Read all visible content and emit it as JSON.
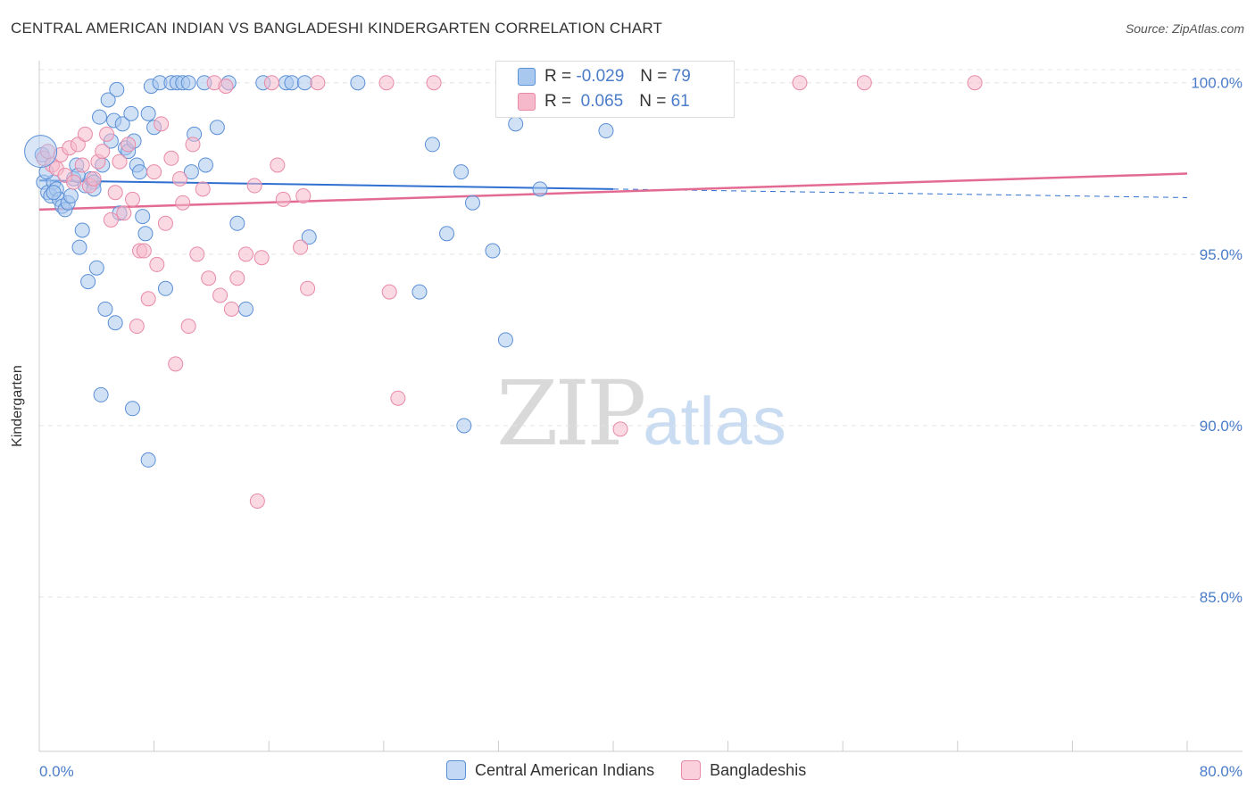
{
  "title": "CENTRAL AMERICAN INDIAN VS BANGLADESHI KINDERGARTEN CORRELATION CHART",
  "source": "Source: ZipAtlas.com",
  "watermark": {
    "zip": "ZIP",
    "atlas": "atlas"
  },
  "colors": {
    "blue_fill": "#a9c8ef",
    "blue_stroke": "#5b8fd6",
    "blue_line": "#2f6fd0",
    "pink_fill": "#f6b9cc",
    "pink_stroke": "#e88aa8",
    "pink_line": "#e36b93",
    "tick_text": "#4a7cc9",
    "grid": "#e4e4e4"
  },
  "legend": {
    "rows": [
      {
        "r_label": "R =",
        "r_value": "-0.029",
        "n_label": "N =",
        "n_value": "79",
        "series": "blue"
      },
      {
        "r_label": "R =",
        "r_value": " 0.065",
        "n_label": "N =",
        "n_value": "61",
        "series": "pink"
      }
    ]
  },
  "bottom_legend": [
    {
      "label": "Central American Indians",
      "series": "blue"
    },
    {
      "label": "Bangladeshis",
      "series": "pink"
    }
  ],
  "chart_data": {
    "type": "scatter",
    "title": "CENTRAL AMERICAN INDIAN VS BANGLADESHI KINDERGARTEN CORRELATION CHART",
    "xlabel": "",
    "ylabel": "Kindergarten",
    "xlim": [
      0,
      80
    ],
    "ylim": [
      80.5,
      100.8
    ],
    "x_tick_labels": [
      {
        "value": 0,
        "label": "0.0%"
      },
      {
        "value": 80,
        "label": "80.0%"
      }
    ],
    "y_tick_labels": [
      {
        "value": 100,
        "label": "100.0%"
      },
      {
        "value": 95,
        "label": "95.0%"
      },
      {
        "value": 90,
        "label": "90.0%"
      },
      {
        "value": 85,
        "label": "85.0%"
      }
    ],
    "y_gridlines": [
      100,
      95,
      90,
      85
    ],
    "x_minor_ticks": [
      0,
      8,
      16,
      24,
      32,
      40,
      48,
      56,
      64,
      72,
      80
    ],
    "series": [
      {
        "name": "Central American Indians",
        "color": "blue",
        "R": -0.029,
        "N": 79,
        "trend": {
          "x0": 0,
          "y0": 97.15,
          "x1": 40,
          "y1": 96.9,
          "dash_x1": 80,
          "dash_y1": 96.65
        },
        "points": [
          [
            0.2,
            97.9
          ],
          [
            0.3,
            97.1
          ],
          [
            0.6,
            96.8
          ],
          [
            0.8,
            96.7
          ],
          [
            1.0,
            97.1
          ],
          [
            1.2,
            96.9
          ],
          [
            1.4,
            96.6
          ],
          [
            1.6,
            96.4
          ],
          [
            1.8,
            96.3
          ],
          [
            2.0,
            96.5
          ],
          [
            2.2,
            96.7
          ],
          [
            2.4,
            97.2
          ],
          [
            2.6,
            97.6
          ],
          [
            2.8,
            95.2
          ],
          [
            3.0,
            95.7
          ],
          [
            3.2,
            97.0
          ],
          [
            3.4,
            94.2
          ],
          [
            3.6,
            97.2
          ],
          [
            3.8,
            97.1
          ],
          [
            4.0,
            94.6
          ],
          [
            4.2,
            99.0
          ],
          [
            4.4,
            97.6
          ],
          [
            4.6,
            93.4
          ],
          [
            4.8,
            99.5
          ],
          [
            5.0,
            98.3
          ],
          [
            5.2,
            98.9
          ],
          [
            5.4,
            99.8
          ],
          [
            5.6,
            96.2
          ],
          [
            5.8,
            98.8
          ],
          [
            6.0,
            98.1
          ],
          [
            6.2,
            98.0
          ],
          [
            6.4,
            99.1
          ],
          [
            6.6,
            98.3
          ],
          [
            6.8,
            97.6
          ],
          [
            7.0,
            97.4
          ],
          [
            7.2,
            96.1
          ],
          [
            7.4,
            95.6
          ],
          [
            7.6,
            99.1
          ],
          [
            7.8,
            99.9
          ],
          [
            8.0,
            98.7
          ],
          [
            8.4,
            100.0
          ],
          [
            8.8,
            94.0
          ],
          [
            9.2,
            100.0
          ],
          [
            9.6,
            100.0
          ],
          [
            10.0,
            100.0
          ],
          [
            10.4,
            100.0
          ],
          [
            10.6,
            97.4
          ],
          [
            10.8,
            98.5
          ],
          [
            11.5,
            100.0
          ],
          [
            11.6,
            97.6
          ],
          [
            12.4,
            98.7
          ],
          [
            13.2,
            100.0
          ],
          [
            13.8,
            95.9
          ],
          [
            14.4,
            93.4
          ],
          [
            15.6,
            100.0
          ],
          [
            17.2,
            100.0
          ],
          [
            17.6,
            100.0
          ],
          [
            18.5,
            100.0
          ],
          [
            18.8,
            95.5
          ],
          [
            22.2,
            100.0
          ],
          [
            26.5,
            93.9
          ],
          [
            27.4,
            98.2
          ],
          [
            28.4,
            95.6
          ],
          [
            29.4,
            97.4
          ],
          [
            29.6,
            90.0
          ],
          [
            30.2,
            96.5
          ],
          [
            31.6,
            95.1
          ],
          [
            32.5,
            92.5
          ],
          [
            33.2,
            98.8
          ],
          [
            34.9,
            96.9
          ],
          [
            39.5,
            98.6
          ],
          [
            6.5,
            90.5
          ],
          [
            7.6,
            89.0
          ],
          [
            4.3,
            90.9
          ],
          [
            5.3,
            93.0
          ],
          [
            1.0,
            96.8
          ],
          [
            0.5,
            97.4
          ],
          [
            2.7,
            97.3
          ],
          [
            3.8,
            96.9
          ]
        ]
      },
      {
        "name": "Bangladeshis",
        "color": "pink",
        "R": 0.065,
        "N": 61,
        "trend": {
          "x0": 0,
          "y0": 96.3,
          "x1": 80,
          "y1": 97.35
        },
        "points": [
          [
            0.3,
            97.8
          ],
          [
            0.6,
            98.0
          ],
          [
            0.9,
            97.6
          ],
          [
            1.2,
            97.5
          ],
          [
            1.5,
            97.9
          ],
          [
            1.8,
            97.3
          ],
          [
            2.1,
            98.1
          ],
          [
            2.4,
            97.1
          ],
          [
            2.7,
            98.2
          ],
          [
            3.0,
            97.6
          ],
          [
            3.2,
            98.5
          ],
          [
            3.5,
            97.0
          ],
          [
            3.8,
            97.2
          ],
          [
            4.1,
            97.7
          ],
          [
            4.4,
            98.0
          ],
          [
            4.7,
            98.5
          ],
          [
            5.0,
            96.0
          ],
          [
            5.3,
            96.8
          ],
          [
            5.6,
            97.7
          ],
          [
            5.9,
            96.2
          ],
          [
            6.2,
            98.2
          ],
          [
            6.5,
            96.6
          ],
          [
            6.8,
            92.9
          ],
          [
            7.0,
            95.1
          ],
          [
            7.3,
            95.1
          ],
          [
            7.6,
            93.7
          ],
          [
            8.0,
            97.4
          ],
          [
            8.2,
            94.7
          ],
          [
            8.5,
            98.8
          ],
          [
            8.8,
            95.9
          ],
          [
            9.2,
            97.8
          ],
          [
            9.5,
            91.8
          ],
          [
            9.8,
            97.2
          ],
          [
            10.0,
            96.5
          ],
          [
            10.4,
            92.9
          ],
          [
            10.7,
            98.2
          ],
          [
            11.0,
            95.0
          ],
          [
            11.4,
            96.9
          ],
          [
            11.8,
            94.3
          ],
          [
            12.2,
            100.0
          ],
          [
            12.6,
            93.8
          ],
          [
            13.0,
            99.9
          ],
          [
            13.4,
            93.4
          ],
          [
            13.8,
            94.3
          ],
          [
            14.4,
            95.0
          ],
          [
            15.0,
            97.0
          ],
          [
            15.5,
            94.9
          ],
          [
            16.2,
            100.0
          ],
          [
            16.6,
            97.6
          ],
          [
            17.0,
            96.6
          ],
          [
            18.4,
            96.7
          ],
          [
            18.2,
            95.2
          ],
          [
            18.7,
            94.0
          ],
          [
            19.4,
            100.0
          ],
          [
            24.4,
            93.9
          ],
          [
            25.0,
            90.8
          ],
          [
            24.2,
            100.0
          ],
          [
            27.5,
            100.0
          ],
          [
            40.5,
            89.9
          ],
          [
            53.0,
            100.0
          ],
          [
            57.5,
            100.0
          ]
        ]
      }
    ],
    "extra_points": {
      "pink": [
        [
          65.2,
          100.0
        ],
        [
          15.2,
          87.8
        ]
      ]
    }
  }
}
